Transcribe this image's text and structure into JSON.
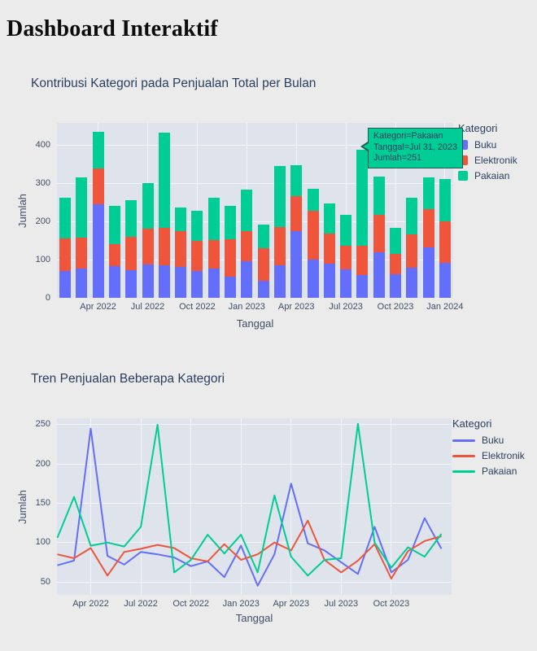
{
  "page": {
    "title": "Dashboard Interaktif"
  },
  "chart_data": [
    {
      "type": "bar",
      "stacked": true,
      "title": "Kontribusi Kategori pada Penjualan Total per Bulan",
      "xlabel": "Tanggal",
      "ylabel": "Jumlah",
      "legend_title": "Kategori",
      "legend_position": "right",
      "grid": true,
      "ylim": [
        0,
        450
      ],
      "y_ticks": [
        0,
        100,
        200,
        300,
        400
      ],
      "categories": [
        "Jan 2022",
        "Feb 2022",
        "Mar 2022",
        "Apr 2022",
        "May 2022",
        "Jun 2022",
        "Jul 2022",
        "Aug 2022",
        "Sep 2022",
        "Oct 2022",
        "Nov 2022",
        "Dec 2022",
        "Jan 2023",
        "Feb 2023",
        "Mar 2023",
        "Apr 2023",
        "May 2023",
        "Jun 2023",
        "Jul 2023",
        "Aug 2023",
        "Sep 2023",
        "Oct 2023",
        "Nov 2023",
        "Dec 2023"
      ],
      "x_tick_indices": [
        2,
        5,
        8,
        11,
        14,
        17,
        20,
        23
      ],
      "x_tick_labels": [
        "Apr 2022",
        "Jul 2022",
        "Oct 2022",
        "Jan 2023",
        "Apr 2023",
        "Jul 2023",
        "Oct 2023",
        "Jan 2024"
      ],
      "series": [
        {
          "name": "Buku",
          "color": "#636EFA",
          "values": [
            71,
            77,
            245,
            83,
            72,
            88,
            85,
            81,
            70,
            76,
            56,
            96,
            45,
            85,
            175,
            99,
            90,
            75,
            60,
            120,
            62,
            78,
            131,
            92
          ]
        },
        {
          "name": "Elektronik",
          "color": "#EF553B",
          "values": [
            85,
            80,
            93,
            58,
            88,
            92,
            97,
            93,
            80,
            76,
            98,
            78,
            85,
            100,
            90,
            128,
            78,
            62,
            77,
            98,
            54,
            89,
            102,
            108
          ]
        },
        {
          "name": "Pakaian",
          "color": "#00CC96",
          "values": [
            106,
            158,
            96,
            100,
            95,
            120,
            250,
            62,
            78,
            110,
            86,
            110,
            62,
            160,
            82,
            58,
            78,
            80,
            251,
            100,
            68,
            94,
            82,
            111
          ]
        }
      ],
      "tooltip": {
        "lines": [
          "Kategori=Pakaian",
          "Tanggal=Jul 31, 2023",
          "Jumlah=251"
        ],
        "bg": "#00CC96",
        "border": "#1E5A50",
        "text": "#24405E",
        "anchor_series": "Pakaian",
        "anchor_category": "Jul 2023"
      }
    },
    {
      "type": "line",
      "title": "Tren Penjualan Beberapa Kategori",
      "xlabel": "Tanggal",
      "ylabel": "Jumlah",
      "legend_title": "Kategori",
      "legend_position": "right",
      "grid": true,
      "ylim": [
        33,
        258
      ],
      "y_ticks": [
        50,
        100,
        150,
        200,
        250
      ],
      "x": [
        "Jan 2022",
        "Feb 2022",
        "Mar 2022",
        "Apr 2022",
        "May 2022",
        "Jun 2022",
        "Jul 2022",
        "Aug 2022",
        "Sep 2022",
        "Oct 2022",
        "Nov 2022",
        "Dec 2022",
        "Jan 2023",
        "Feb 2023",
        "Mar 2023",
        "Apr 2023",
        "May 2023",
        "Jun 2023",
        "Jul 2023",
        "Aug 2023",
        "Sep 2023",
        "Oct 2023",
        "Nov 2023",
        "Dec 2023"
      ],
      "x_tick_indices": [
        2,
        5,
        8,
        11,
        14,
        17,
        20
      ],
      "x_tick_labels": [
        "Apr 2022",
        "Jul 2022",
        "Oct 2022",
        "Jan 2023",
        "Apr 2023",
        "Jul 2023",
        "Oct 2023"
      ],
      "series": [
        {
          "name": "Buku",
          "color": "#636EFA",
          "values": [
            71,
            77,
            245,
            83,
            72,
            88,
            85,
            81,
            70,
            76,
            56,
            96,
            45,
            85,
            175,
            99,
            90,
            75,
            60,
            120,
            62,
            78,
            131,
            92
          ]
        },
        {
          "name": "Elektronik",
          "color": "#EF553B",
          "values": [
            85,
            80,
            93,
            58,
            88,
            92,
            97,
            93,
            80,
            76,
            98,
            78,
            85,
            100,
            90,
            128,
            78,
            62,
            77,
            98,
            54,
            89,
            102,
            108
          ]
        },
        {
          "name": "Pakaian",
          "color": "#00CC96",
          "values": [
            106,
            158,
            96,
            100,
            95,
            120,
            250,
            62,
            78,
            110,
            86,
            110,
            62,
            160,
            82,
            58,
            78,
            80,
            251,
            100,
            68,
            94,
            82,
            111
          ]
        }
      ]
    }
  ]
}
